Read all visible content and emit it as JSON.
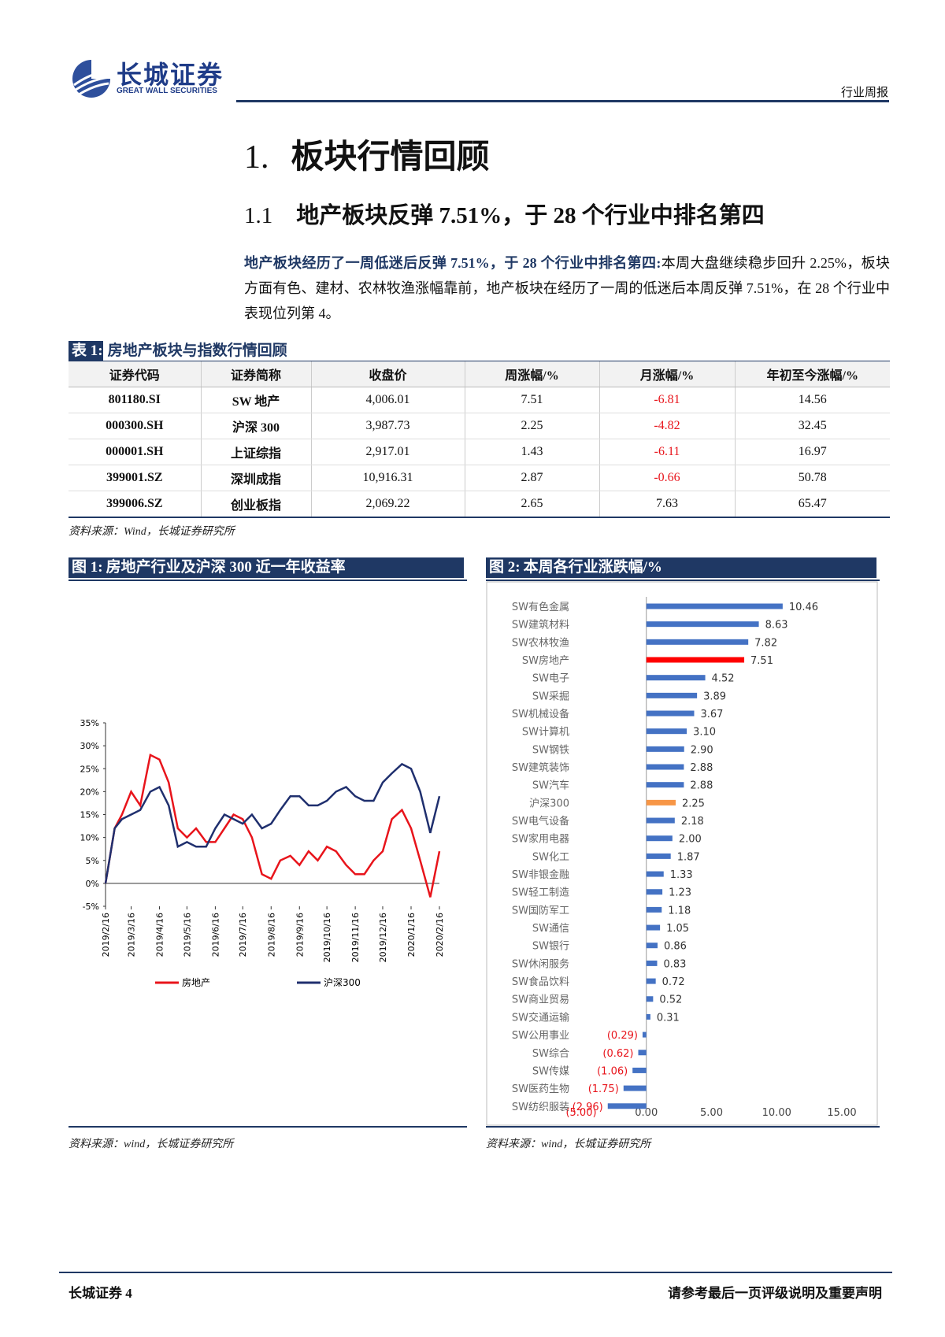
{
  "header": {
    "logo_cn": "长城证券",
    "logo_en": "GREAT WALL SECURITIES",
    "tag": "行业周报"
  },
  "heading1": {
    "number": "1.",
    "text": "板块行情回顾"
  },
  "heading2": {
    "number": "1.1",
    "text": "地产板块反弹 7.51%，于 28 个行业中排名第四"
  },
  "paragraph": {
    "lead": "地产板块经历了一周低迷后反弹 7.51%，于 28 个行业中排名第四:",
    "body": "本周大盘继续稳步回升 2.25%，板块方面有色、建材、农林牧渔涨幅靠前，地产板块在经历了一周的低迷后本周反弹 7.51%，在 28 个行业中表现位列第 4。"
  },
  "table": {
    "label": "表 1:",
    "title": "房地产板块与指数行情回顾",
    "columns": [
      "证券代码",
      "证券简称",
      "收盘价",
      "周涨幅/%",
      "月涨幅/%",
      "年初至今涨幅/%"
    ],
    "rows": [
      [
        "801180.SI",
        "SW 地产",
        "4,006.01",
        "7.51",
        "-6.81",
        "14.56"
      ],
      [
        "000300.SH",
        "沪深 300",
        "3,987.73",
        "2.25",
        "-4.82",
        "32.45"
      ],
      [
        "000001.SH",
        "上证综指",
        "2,917.01",
        "1.43",
        "-6.11",
        "16.97"
      ],
      [
        "399001.SZ",
        "深圳成指",
        "10,916.31",
        "2.87",
        "-0.66",
        "50.78"
      ],
      [
        "399006.SZ",
        "创业板指",
        "2,069.22",
        "2.65",
        "7.63",
        "65.47"
      ]
    ],
    "source": "资料来源：Wind，长城证券研究所"
  },
  "figures": [
    {
      "label": "图 1:",
      "title": "房地产行业及沪深 300 近一年收益率",
      "source": "资料来源：wind，长城证券研究所",
      "chart_data": {
        "type": "line",
        "x": [
          "2019/2/16",
          "2019/2/26",
          "2019/3/6",
          "2019/3/16",
          "2019/3/26",
          "2019/4/6",
          "2019/4/16",
          "2019/4/26",
          "2019/5/6",
          "2019/5/16",
          "2019/5/26",
          "2019/6/6",
          "2019/6/16",
          "2019/6/26",
          "2019/7/6",
          "2019/7/16",
          "2019/7/26",
          "2019/8/6",
          "2019/8/16",
          "2019/8/26",
          "2019/9/6",
          "2019/9/16",
          "2019/9/26",
          "2019/10/6",
          "2019/10/16",
          "2019/10/26",
          "2019/11/6",
          "2019/11/16",
          "2019/11/26",
          "2019/12/6",
          "2019/12/16",
          "2019/12/26",
          "2020/1/6",
          "2020/1/16",
          "2020/1/26",
          "2020/2/6",
          "2020/2/16"
        ],
        "series": [
          {
            "name": "房地产",
            "color": "#e8141b",
            "values": [
              0,
              12,
              15,
              20,
              17,
              28,
              27,
              22,
              12,
              10,
              12,
              9,
              9,
              12,
              15,
              14,
              10,
              2,
              1,
              5,
              6,
              4,
              7,
              5,
              8,
              7,
              4,
              2,
              2,
              5,
              7,
              14,
              16,
              12,
              5,
              -3,
              7
            ]
          },
          {
            "name": "沪深300",
            "color": "#1f2f6e",
            "values": [
              0,
              12,
              14,
              15,
              16,
              20,
              21,
              17,
              8,
              9,
              8,
              8,
              12,
              15,
              14,
              13,
              15,
              12,
              13,
              16,
              19,
              19,
              17,
              17,
              18,
              20,
              21,
              19,
              18,
              18,
              22,
              24,
              26,
              25,
              20,
              11,
              19
            ]
          }
        ],
        "xlim": [
          "2019/2/16",
          "2020/2/16"
        ],
        "xticks": [
          "2019/2/16",
          "2019/3/16",
          "2019/4/16",
          "2019/5/16",
          "2019/6/16",
          "2019/7/16",
          "2019/8/16",
          "2019/9/16",
          "2019/10/16",
          "2019/11/16",
          "2019/12/16",
          "2020/1/16",
          "2020/2/16"
        ],
        "ylim": [
          -5,
          35
        ],
        "yticks": [
          {
            "value": -5,
            "label": "-5%"
          },
          {
            "value": 0,
            "label": "0%"
          },
          {
            "value": 5,
            "label": "5%"
          },
          {
            "value": 10,
            "label": "10%"
          },
          {
            "value": 15,
            "label": "15%"
          },
          {
            "value": 20,
            "label": "20%"
          },
          {
            "value": 25,
            "label": "25%"
          },
          {
            "value": 30,
            "label": "30%"
          },
          {
            "value": 35,
            "label": "35%"
          }
        ],
        "legend": "bottom"
      }
    },
    {
      "label": "图 2:",
      "title": "本周各行业涨跌幅/%",
      "source": "资料来源：wind，长城证券研究所",
      "chart_data": {
        "type": "hbar",
        "categories": [
          "SW有色金属",
          "SW建筑材料",
          "SW农林牧渔",
          "SW房地产",
          "SW电子",
          "SW采掘",
          "SW机械设备",
          "SW计算机",
          "SW钢铁",
          "SW建筑装饰",
          "SW汽车",
          "沪深300",
          "SW电气设备",
          "SW家用电器",
          "SW化工",
          "SW非银金融",
          "SW轻工制造",
          "SW国防军工",
          "SW通信",
          "SW银行",
          "SW休闲服务",
          "SW食品饮料",
          "SW商业贸易",
          "SW交通运输",
          "SW公用事业",
          "SW综合",
          "SW传媒",
          "SW医药生物",
          "SW纺织服装"
        ],
        "values": [
          10.46,
          8.63,
          7.82,
          7.51,
          4.52,
          3.89,
          3.67,
          3.1,
          2.9,
          2.88,
          2.88,
          2.25,
          2.18,
          2,
          1.87,
          1.33,
          1.23,
          1.18,
          1.05,
          0.86,
          0.83,
          0.72,
          0.52,
          0.31,
          -0.29,
          -0.62,
          -1.06,
          -1.75,
          -2.96
        ],
        "value_labels": [
          "10.46",
          "8.63",
          "7.82",
          "7.51",
          "4.52",
          "3.89",
          "3.67",
          "3.10",
          "2.90",
          "2.88",
          "2.88",
          "2.25",
          "2.18",
          "2.00",
          "1.87",
          "1.33",
          "1.23",
          "1.18",
          "1.05",
          "0.86",
          "0.83",
          "0.72",
          "0.52",
          "0.31",
          "(0.29)",
          "(0.62)",
          "(1.06)",
          "(1.75)",
          "(2.96)"
        ],
        "colors": [
          "#4472c4",
          "#4472c4",
          "#4472c4",
          "#ff0000",
          "#4472c4",
          "#4472c4",
          "#4472c4",
          "#4472c4",
          "#4472c4",
          "#4472c4",
          "#4472c4",
          "#f79646",
          "#4472c4",
          "#4472c4",
          "#4472c4",
          "#4472c4",
          "#4472c4",
          "#4472c4",
          "#4472c4",
          "#4472c4",
          "#4472c4",
          "#4472c4",
          "#4472c4",
          "#4472c4",
          "#4472c4",
          "#4472c4",
          "#4472c4",
          "#4472c4",
          "#4472c4"
        ],
        "xlim": [
          -5,
          15
        ],
        "xticks": [
          {
            "value": -5,
            "label": "(5.00)"
          },
          {
            "value": 0,
            "label": "0.00"
          },
          {
            "value": 5,
            "label": "5.00"
          },
          {
            "value": 10,
            "label": "10.00"
          },
          {
            "value": 15,
            "label": "15.00"
          }
        ]
      }
    }
  ],
  "footer": {
    "left": "长城证券 4",
    "right": "请参考最后一页评级说明及重要声明"
  }
}
